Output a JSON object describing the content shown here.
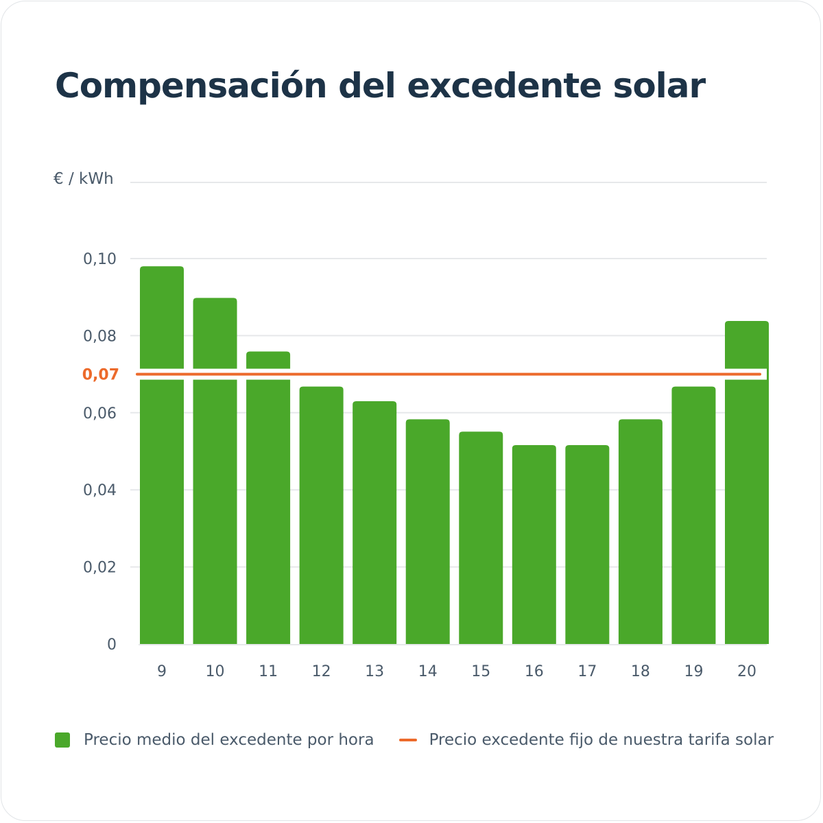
{
  "chart_data": {
    "type": "bar",
    "title": "Compensación del excedente solar",
    "ylabel": "€ / kWh",
    "categories": [
      "9",
      "10",
      "11",
      "12",
      "13",
      "14",
      "15",
      "16",
      "17",
      "18",
      "19",
      "20"
    ],
    "series": [
      {
        "name": "Precio medio del excedente por hora",
        "values": [
          0.098,
          0.0898,
          0.0759,
          0.0668,
          0.063,
          0.0583,
          0.0551,
          0.0516,
          0.0516,
          0.0583,
          0.0668,
          0.0838
        ],
        "color": "#4aa82a"
      }
    ],
    "reference_line": {
      "name": "Precio excedente fijo de nuestra tarifa solar",
      "value": 0.07,
      "label": "0,07",
      "color": "#ec6a2b"
    },
    "ylim": [
      0,
      0.1
    ],
    "yticks": [
      0,
      0.02,
      0.04,
      0.06,
      0.08,
      0.1
    ],
    "ytick_labels": [
      "0",
      "0,02",
      "0,04",
      "0,06",
      "0,08",
      "0,10"
    ],
    "grid": true,
    "legend_position": "bottom"
  },
  "colors": {
    "title": "#1d3347",
    "axis_text": "#4a5a6a",
    "grid": "#e6e8ea",
    "bar": "#4aa82a",
    "reference": "#ec6a2b"
  }
}
